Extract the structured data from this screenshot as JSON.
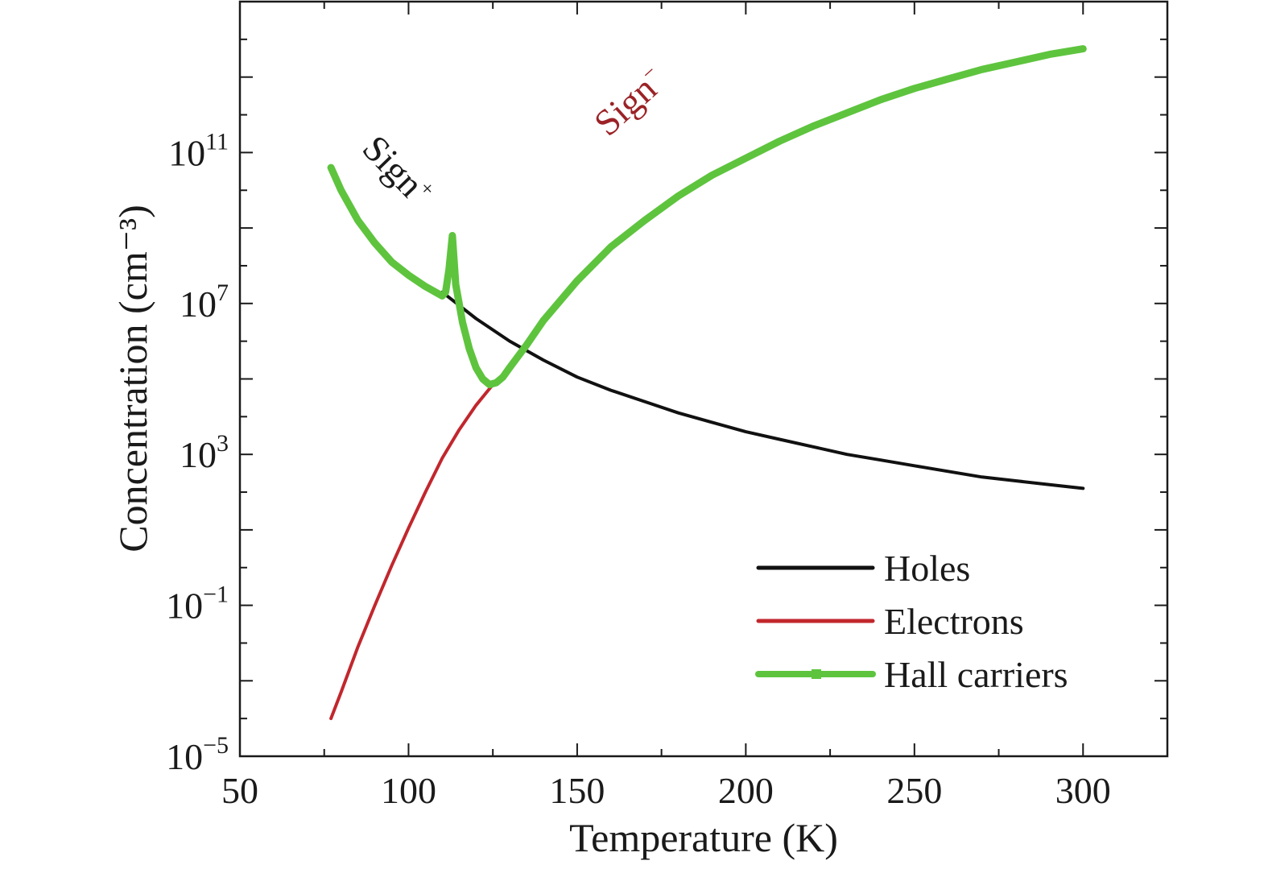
{
  "chart_data": {
    "type": "line",
    "title": "",
    "xlabel": "Temperature (K)",
    "ylabel": "Concentration (cm⁻³)",
    "xlim": [
      50,
      325
    ],
    "ylim": [
      -5,
      15
    ],
    "yscale": "log",
    "grid": false,
    "legend_position": "bottom-right",
    "x_ticks": [
      50,
      100,
      150,
      200,
      250,
      300
    ],
    "y_ticks": [
      {
        "exp": -5,
        "base": "10",
        "sup": "−5"
      },
      {
        "exp": -1,
        "base": "10",
        "sup": "−1"
      },
      {
        "exp": 3,
        "base": "10",
        "sup": "3"
      },
      {
        "exp": 7,
        "base": "10",
        "sup": "7"
      },
      {
        "exp": 11,
        "base": "10",
        "sup": "11"
      }
    ],
    "series": [
      {
        "name": "Holes",
        "color": "#111111",
        "x": [
          110,
          120,
          130,
          140,
          150,
          160,
          170,
          180,
          190,
          200,
          210,
          220,
          230,
          240,
          250,
          260,
          270,
          280,
          290,
          300
        ],
        "log10_y": [
          7.3,
          6.6,
          6.0,
          5.5,
          5.05,
          4.7,
          4.4,
          4.1,
          3.85,
          3.6,
          3.4,
          3.2,
          3.0,
          2.85,
          2.7,
          2.55,
          2.4,
          2.3,
          2.2,
          2.1
        ]
      },
      {
        "name": "Electrons",
        "color": "#c1272d",
        "x": [
          77,
          80,
          85,
          90,
          95,
          100,
          105,
          110,
          115,
          120,
          125,
          130
        ],
        "log10_y": [
          -4.0,
          -3.3,
          -2.1,
          -1.0,
          0.05,
          1.05,
          2.0,
          2.9,
          3.65,
          4.3,
          4.85,
          5.3
        ]
      },
      {
        "name": "Hall carriers",
        "color": "#5ec43e",
        "x": [
          77,
          80,
          85,
          90,
          95,
          100,
          105,
          110,
          111,
          112,
          113,
          114,
          116,
          118,
          120,
          122,
          124,
          126,
          128,
          130,
          135,
          140,
          150,
          160,
          170,
          180,
          190,
          200,
          210,
          220,
          230,
          240,
          250,
          260,
          270,
          280,
          290,
          300
        ],
        "log10_y": [
          10.6,
          10.0,
          9.2,
          8.6,
          8.1,
          7.75,
          7.45,
          7.2,
          7.3,
          7.9,
          8.8,
          7.5,
          6.5,
          5.8,
          5.3,
          5.0,
          4.85,
          4.9,
          5.05,
          5.3,
          5.9,
          6.55,
          7.6,
          8.5,
          9.2,
          9.85,
          10.4,
          10.85,
          11.3,
          11.7,
          12.05,
          12.4,
          12.7,
          12.95,
          13.2,
          13.4,
          13.6,
          13.75
        ]
      }
    ],
    "annotations": [
      {
        "base": "Sign",
        "sup": "+",
        "color": "#1a1a1a",
        "x": 94,
        "log10_y": 10.3,
        "rotate": 46
      },
      {
        "base": "Sign",
        "sup": "−",
        "color": "#9b2226",
        "x": 168,
        "log10_y": 12.1,
        "rotate": -42
      }
    ]
  }
}
